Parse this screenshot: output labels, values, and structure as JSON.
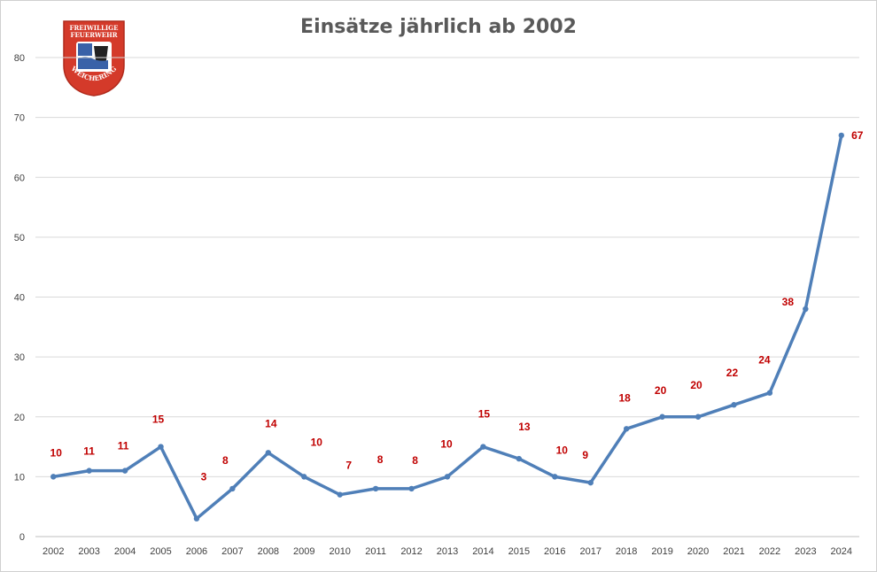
{
  "chart_data": {
    "type": "line",
    "title": "Einsätze jährlich ab 2002",
    "xlabel": "",
    "ylabel": "",
    "ylim": [
      0,
      80
    ],
    "yticks": [
      0,
      10,
      20,
      30,
      40,
      50,
      60,
      70,
      80
    ],
    "grid": true,
    "legend": "none",
    "categories": [
      "2002",
      "2003",
      "2004",
      "2005",
      "2006",
      "2007",
      "2008",
      "2009",
      "2010",
      "2011",
      "2012",
      "2013",
      "2014",
      "2015",
      "2016",
      "2017",
      "2018",
      "2019",
      "2020",
      "2021",
      "2022",
      "2023",
      "2024"
    ],
    "series": [
      {
        "values": [
          10,
          11,
          11,
          15,
          3,
          8,
          14,
          10,
          7,
          8,
          8,
          10,
          15,
          13,
          10,
          9,
          18,
          20,
          20,
          22,
          24,
          38,
          67
        ]
      }
    ],
    "data_labels": [
      "10",
      "11",
      "11",
      "15",
      "3",
      "8",
      "14",
      "10",
      "7",
      "8",
      "8",
      "10",
      "15",
      "13",
      "10",
      "9",
      "18",
      "20",
      "20",
      "22",
      "24",
      "38",
      "67"
    ],
    "colors": {
      "line": "#4f7fb8",
      "label": "#c00000",
      "grid": "#d9d9d9",
      "axis_text": "#404040"
    }
  },
  "logo": {
    "top_text": "FREIWILLIGE",
    "mid_text": "FEUERWEHR",
    "bottom_text": "WEICHERING",
    "colors": {
      "shield": "#d43a2a",
      "text": "#ffffff"
    }
  }
}
